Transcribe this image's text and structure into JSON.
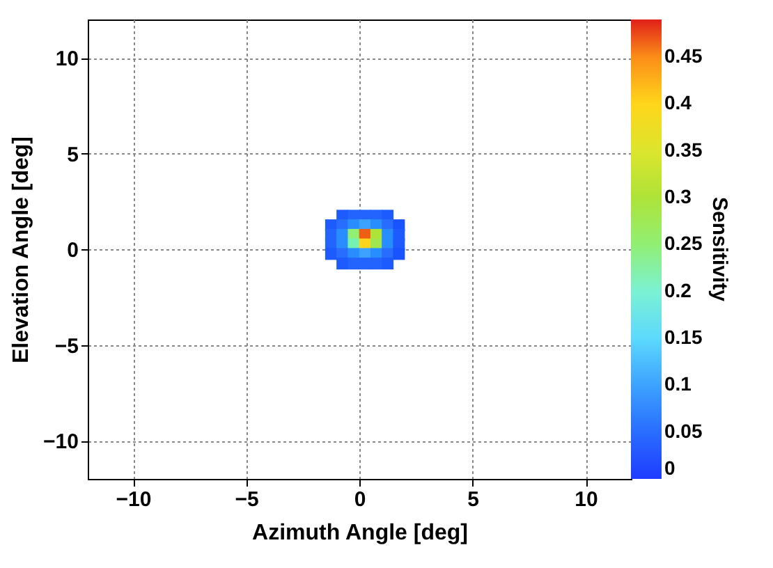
{
  "chart_data": {
    "type": "scatter",
    "marker": "square",
    "xlabel": "Azimuth Angle [deg]",
    "ylabel": "Elevation Angle [deg]",
    "clabel": "Sensitivity",
    "xlim": [
      -12,
      12
    ],
    "ylim": [
      -12,
      12
    ],
    "xticks": [
      -10,
      -5,
      0,
      5,
      10
    ],
    "yticks": [
      -10,
      -5,
      0,
      5,
      10
    ],
    "grid": true,
    "clim": [
      0,
      0.49
    ],
    "cticks": [
      0,
      0.05,
      0.1,
      0.15,
      0.2,
      0.25,
      0.3,
      0.35,
      0.4,
      0.45
    ],
    "x": [
      -0.75,
      -0.25,
      0.25,
      0.75,
      1.25,
      -1.25,
      -0.75,
      -0.25,
      0.25,
      0.75,
      1.25,
      1.75,
      -1.25,
      -0.75,
      -0.25,
      0.25,
      0.75,
      1.25,
      1.75,
      -1.25,
      -0.75,
      -0.25,
      0.25,
      0.75,
      1.25,
      1.75,
      -1.25,
      -0.75,
      -0.25,
      0.25,
      0.75,
      1.25,
      1.75,
      -0.75,
      -0.25,
      0.25,
      0.75,
      1.25
    ],
    "values": [
      1.75,
      1.75,
      1.75,
      1.75,
      1.75,
      1.25,
      1.25,
      1.25,
      1.25,
      1.25,
      1.25,
      1.25,
      0.75,
      0.75,
      0.75,
      0.75,
      0.75,
      0.75,
      0.75,
      0.25,
      0.25,
      0.25,
      0.25,
      0.25,
      0.25,
      0.25,
      -0.25,
      -0.25,
      -0.25,
      -0.25,
      -0.25,
      -0.25,
      -0.25,
      -0.75,
      -0.75,
      -0.75,
      -0.75,
      -0.75
    ],
    "cvalues": [
      0.03,
      0.04,
      0.04,
      0.04,
      0.03,
      0.03,
      0.05,
      0.08,
      0.1,
      0.08,
      0.05,
      0.02,
      0.04,
      0.08,
      0.25,
      0.47,
      0.3,
      0.08,
      0.03,
      0.04,
      0.08,
      0.22,
      0.4,
      0.28,
      0.08,
      0.03,
      0.03,
      0.05,
      0.08,
      0.1,
      0.08,
      0.05,
      0.02,
      0.03,
      0.04,
      0.04,
      0.04,
      0.03
    ]
  }
}
